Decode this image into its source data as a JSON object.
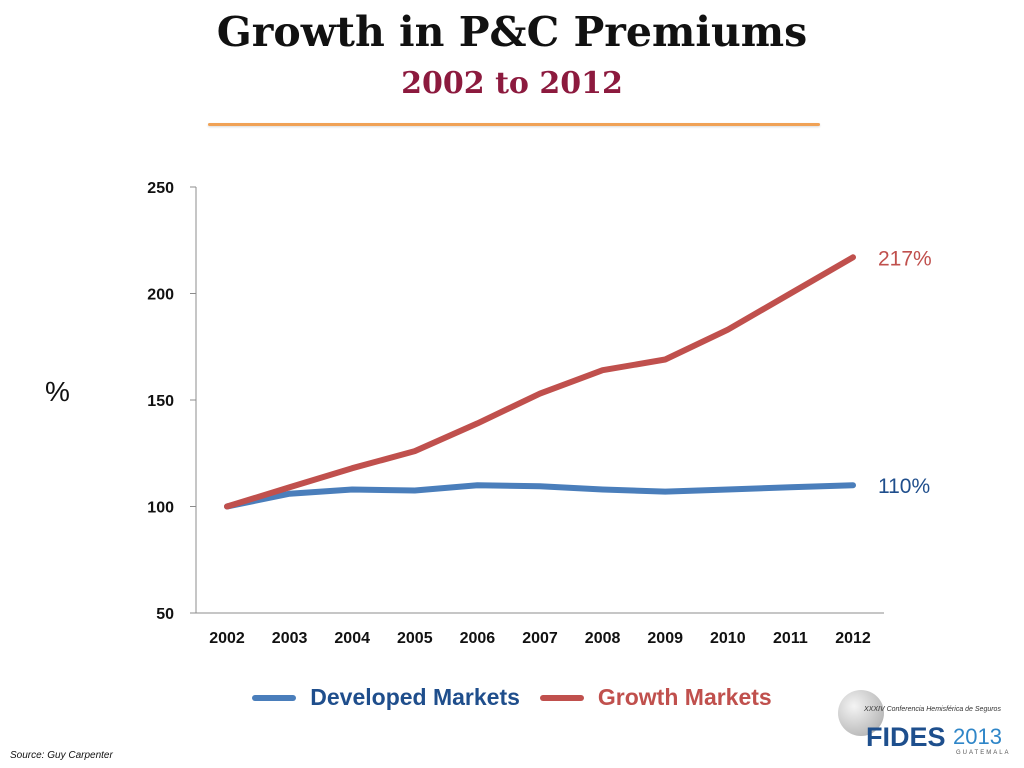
{
  "slide": {
    "title": "Growth in P&C Premiums",
    "subtitle": "2002 to 2012",
    "ylabel": "%",
    "source": "Source: Guy Carpenter"
  },
  "logo": {
    "tagline": "XXXIV Conferencia Hemisférica de Seguros",
    "name": "FIDES",
    "year": "2013",
    "country": "GUATEMALA"
  },
  "chart_data": {
    "type": "line",
    "title": "",
    "xlabel": "",
    "ylabel": "%",
    "x": [
      "2002",
      "2003",
      "2004",
      "2005",
      "2006",
      "2007",
      "2008",
      "2009",
      "2010",
      "2011",
      "2012"
    ],
    "ylim": [
      50,
      250
    ],
    "yticks": [
      50,
      100,
      150,
      200,
      250
    ],
    "grid": false,
    "legend": "bottom",
    "series": [
      {
        "name": "Developed Markets",
        "color": "#4a7ebb",
        "values": [
          100,
          106,
          108,
          107.5,
          110,
          109.5,
          108,
          107,
          108,
          109,
          110
        ],
        "end_label": "110%",
        "end_label_color": "#1f4e8c"
      },
      {
        "name": "Growth Markets",
        "color": "#c0504d",
        "values": [
          100,
          109,
          118,
          126,
          139,
          153,
          164,
          169,
          183,
          200,
          217
        ],
        "end_label": "217%",
        "end_label_color": "#c0504d"
      }
    ]
  }
}
